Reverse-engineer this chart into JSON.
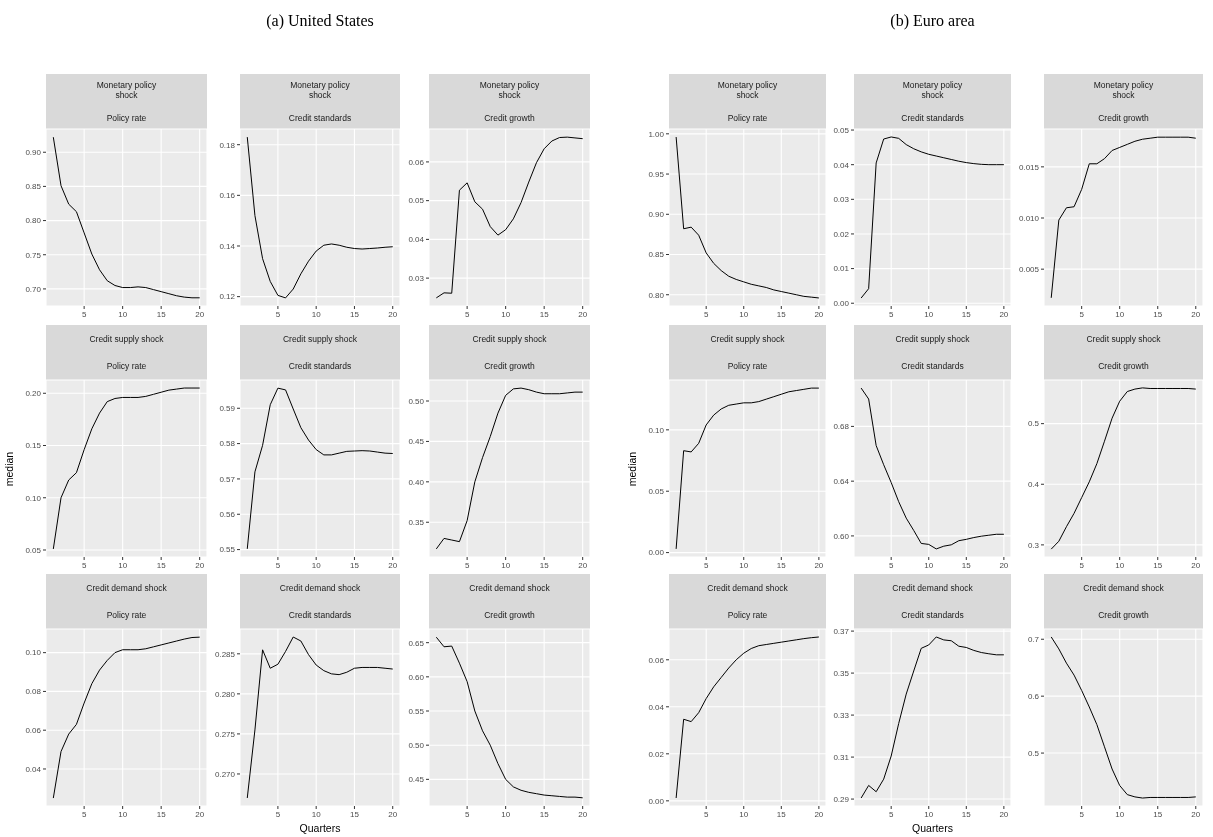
{
  "chart_data": [
    {
      "type": "line",
      "title": "Monetary policy\nshock",
      "subtitle": "Policy rate",
      "color": "#000000",
      "grid": true,
      "x": [
        1,
        2,
        3,
        4,
        5,
        6,
        7,
        8,
        9,
        10,
        11,
        12,
        13,
        14,
        15,
        16,
        17,
        18,
        19,
        20
      ],
      "xlim": [
        0.05,
        20.95
      ],
      "xticks": [
        5,
        10,
        15,
        20
      ],
      "ylim": [
        0.675,
        0.934
      ],
      "yticks": [
        {
          "value": 0.7,
          "label": "0.70"
        },
        0.75,
        {
          "value": 0.8,
          "label": "0.80"
        },
        0.85,
        {
          "value": 0.9,
          "label": "0.90"
        }
      ],
      "values": [
        0.922,
        0.851,
        0.824,
        0.813,
        0.782,
        0.751,
        0.728,
        0.712,
        0.705,
        0.702,
        0.702,
        0.703,
        0.702,
        0.699,
        0.696,
        0.693,
        0.69,
        0.688,
        0.687,
        0.687
      ]
    },
    {
      "type": "line",
      "title": "Monetary policy\nshock",
      "subtitle": "Credit standards",
      "annotations": [
        "(a) United States"
      ],
      "color": "#000000",
      "grid": true,
      "x": [
        1,
        2,
        3,
        4,
        5,
        6,
        7,
        8,
        9,
        10,
        11,
        12,
        13,
        14,
        15,
        16,
        17,
        18,
        19,
        20
      ],
      "xlim": [
        0.05,
        20.95
      ],
      "xticks": [
        5,
        10,
        15,
        20
      ],
      "ylim": [
        0.1163,
        0.1862
      ],
      "yticks": [
        0.12,
        0.14,
        0.16,
        0.18
      ],
      "values": [
        0.183,
        0.152,
        0.135,
        0.126,
        0.1205,
        0.1195,
        0.123,
        0.129,
        0.134,
        0.138,
        0.1403,
        0.1408,
        0.1403,
        0.1395,
        0.139,
        0.1388,
        0.139,
        0.1392,
        0.1395,
        0.1397
      ]
    },
    {
      "type": "line",
      "title": "Monetary policy\nshock",
      "subtitle": "Credit growth",
      "color": "#000000",
      "grid": true,
      "x": [
        1,
        2,
        3,
        4,
        5,
        6,
        7,
        8,
        9,
        10,
        11,
        12,
        13,
        14,
        15,
        16,
        17,
        18,
        19,
        20
      ],
      "xlim": [
        0.05,
        20.95
      ],
      "xticks": [
        5,
        10,
        15,
        20
      ],
      "ylim": [
        0.0228,
        0.0685
      ],
      "yticks": [
        0.03,
        0.04,
        0.05,
        0.06
      ],
      "values": [
        0.0249,
        0.0262,
        0.0261,
        0.0527,
        0.0546,
        0.0497,
        0.0478,
        0.0433,
        0.0411,
        0.0425,
        0.0453,
        0.0495,
        0.0548,
        0.0598,
        0.0634,
        0.0654,
        0.0663,
        0.0664,
        0.0662,
        0.066
      ]
    },
    {
      "type": "line",
      "title": "Credit supply shock",
      "subtitle": "Policy rate",
      "ylabel": "median",
      "color": "#000000",
      "grid": true,
      "x": [
        1,
        2,
        3,
        4,
        5,
        6,
        7,
        8,
        9,
        10,
        11,
        12,
        13,
        14,
        15,
        16,
        17,
        18,
        19,
        20
      ],
      "xlim": [
        0.05,
        20.95
      ],
      "xticks": [
        5,
        10,
        15,
        20
      ],
      "ylim": [
        0.0433,
        0.2127
      ],
      "yticks": [
        0.05,
        {
          "value": 0.1,
          "label": "0.10"
        },
        0.15,
        {
          "value": 0.2,
          "label": "0.20"
        }
      ],
      "values": [
        0.051,
        0.1,
        0.117,
        0.124,
        0.146,
        0.166,
        0.181,
        0.192,
        0.195,
        0.196,
        0.196,
        0.196,
        0.197,
        0.199,
        0.201,
        0.203,
        0.204,
        0.205,
        0.205,
        0.205
      ]
    },
    {
      "type": "line",
      "title": "Credit supply shock",
      "subtitle": "Credit standards",
      "color": "#000000",
      "grid": true,
      "x": [
        1,
        2,
        3,
        4,
        5,
        6,
        7,
        8,
        9,
        10,
        11,
        12,
        13,
        14,
        15,
        16,
        17,
        18,
        19,
        20
      ],
      "xlim": [
        0.05,
        20.95
      ],
      "xticks": [
        5,
        10,
        15,
        20
      ],
      "ylim": [
        0.5479,
        0.598
      ],
      "yticks": [
        0.55,
        0.56,
        0.57,
        0.58,
        0.59
      ],
      "values": [
        0.5502,
        0.572,
        0.5795,
        0.591,
        0.5957,
        0.5952,
        0.5898,
        0.5845,
        0.581,
        0.5783,
        0.5768,
        0.5768,
        0.5773,
        0.5778,
        0.5779,
        0.578,
        0.5779,
        0.5776,
        0.5773,
        0.5772
      ]
    },
    {
      "type": "line",
      "title": "Credit supply shock",
      "subtitle": "Credit growth",
      "color": "#000000",
      "grid": true,
      "x": [
        1,
        2,
        3,
        4,
        5,
        6,
        7,
        8,
        9,
        10,
        11,
        12,
        13,
        14,
        15,
        16,
        17,
        18,
        19,
        20
      ],
      "xlim": [
        0.05,
        20.95
      ],
      "xticks": [
        5,
        10,
        15,
        20
      ],
      "ylim": [
        0.307,
        0.526
      ],
      "yticks": [
        0.35,
        {
          "value": 0.4,
          "label": "0.40"
        },
        0.45,
        {
          "value": 0.5,
          "label": "0.50"
        }
      ],
      "values": [
        0.317,
        0.33,
        0.328,
        0.326,
        0.352,
        0.4,
        0.43,
        0.456,
        0.485,
        0.507,
        0.515,
        0.516,
        0.514,
        0.511,
        0.509,
        0.509,
        0.509,
        0.51,
        0.511,
        0.511
      ]
    },
    {
      "type": "line",
      "title": "Credit demand shock",
      "subtitle": "Policy rate",
      "color": "#000000",
      "grid": true,
      "x": [
        1,
        2,
        3,
        4,
        5,
        6,
        7,
        8,
        9,
        10,
        11,
        12,
        13,
        14,
        15,
        16,
        17,
        18,
        19,
        20
      ],
      "xlim": [
        0.05,
        20.95
      ],
      "xticks": [
        5,
        10,
        15,
        20
      ],
      "ylim": [
        0.0209,
        0.1122
      ],
      "yticks": [
        0.04,
        0.06,
        0.08,
        {
          "value": 0.1,
          "label": "0.10"
        }
      ],
      "values": [
        0.025,
        0.049,
        0.058,
        0.063,
        0.074,
        0.084,
        0.091,
        0.096,
        0.1,
        0.1015,
        0.1015,
        0.1015,
        0.102,
        0.103,
        0.104,
        0.105,
        0.106,
        0.107,
        0.1078,
        0.108
      ]
    },
    {
      "type": "line",
      "title": "Credit demand shock",
      "subtitle": "Credit standards",
      "xlabel": "Quarters",
      "color": "#000000",
      "grid": true,
      "x": [
        1,
        2,
        3,
        4,
        5,
        6,
        7,
        8,
        9,
        10,
        11,
        12,
        13,
        14,
        15,
        16,
        17,
        18,
        19,
        20
      ],
      "xlim": [
        0.05,
        20.95
      ],
      "xticks": [
        5,
        10,
        15,
        20
      ],
      "ylim": [
        0.266,
        0.2881
      ],
      "yticks": [
        {
          "value": 0.27,
          "label": "0.270"
        },
        0.275,
        {
          "value": 0.28,
          "label": "0.280"
        },
        0.285
      ],
      "values": [
        0.267,
        0.2755,
        0.2855,
        0.2832,
        0.2837,
        0.2853,
        0.2871,
        0.2866,
        0.2849,
        0.2836,
        0.2829,
        0.2825,
        0.2824,
        0.2827,
        0.2832,
        0.2833,
        0.2833,
        0.2833,
        0.2832,
        0.2831
      ]
    },
    {
      "type": "line",
      "title": "Credit demand shock",
      "subtitle": "Credit growth",
      "color": "#000000",
      "grid": true,
      "x": [
        1,
        2,
        3,
        4,
        5,
        6,
        7,
        8,
        9,
        10,
        11,
        12,
        13,
        14,
        15,
        16,
        17,
        18,
        19,
        20
      ],
      "xlim": [
        0.05,
        20.95
      ],
      "xticks": [
        5,
        10,
        15,
        20
      ],
      "ylim": [
        0.411,
        0.67
      ],
      "yticks": [
        0.45,
        {
          "value": 0.5,
          "label": "0.50"
        },
        0.55,
        {
          "value": 0.6,
          "label": "0.60"
        },
        0.65
      ],
      "values": [
        0.658,
        0.644,
        0.645,
        0.62,
        0.593,
        0.55,
        0.521,
        0.5,
        0.473,
        0.45,
        0.439,
        0.434,
        0.431,
        0.429,
        0.427,
        0.426,
        0.425,
        0.424,
        0.424,
        0.423
      ]
    },
    {
      "type": "line",
      "title": "Monetary policy\nshock",
      "subtitle": "Policy rate",
      "color": "#000000",
      "grid": true,
      "x": [
        1,
        2,
        3,
        4,
        5,
        6,
        7,
        8,
        9,
        10,
        11,
        12,
        13,
        14,
        15,
        16,
        17,
        18,
        19,
        20
      ],
      "xlim": [
        0.05,
        20.95
      ],
      "xticks": [
        5,
        10,
        15,
        20
      ],
      "ylim": [
        0.786,
        1.006
      ],
      "yticks": [
        {
          "value": 0.8,
          "label": "0.80"
        },
        0.85,
        {
          "value": 0.9,
          "label": "0.90"
        },
        0.95,
        {
          "value": 1,
          "label": "1.00"
        }
      ],
      "values": [
        0.996,
        0.882,
        0.884,
        0.874,
        0.852,
        0.839,
        0.83,
        0.823,
        0.819,
        0.816,
        0.813,
        0.811,
        0.809,
        0.806,
        0.804,
        0.802,
        0.8,
        0.798,
        0.797,
        0.796
      ]
    },
    {
      "type": "line",
      "title": "Monetary policy\nshock",
      "subtitle": "Credit standards",
      "annotations": [
        "(b) Euro area"
      ],
      "color": "#000000",
      "grid": true,
      "x": [
        1,
        2,
        3,
        4,
        5,
        6,
        7,
        8,
        9,
        10,
        11,
        12,
        13,
        14,
        15,
        16,
        17,
        18,
        19,
        20
      ],
      "xlim": [
        0.05,
        20.95
      ],
      "xticks": [
        5,
        10,
        15,
        20
      ],
      "ylim": [
        -0.0008,
        0.0503
      ],
      "yticks": [
        {
          "value": 0,
          "label": "0.00"
        },
        0.01,
        0.02,
        0.03,
        0.04,
        0.05
      ],
      "values": [
        0.0015,
        0.0042,
        0.0405,
        0.0474,
        0.048,
        0.0476,
        0.0458,
        0.0446,
        0.0437,
        0.043,
        0.0425,
        0.042,
        0.0415,
        0.041,
        0.0406,
        0.0403,
        0.0401,
        0.04,
        0.04,
        0.04
      ]
    },
    {
      "type": "line",
      "title": "Monetary policy\nshock",
      "subtitle": "Credit growth",
      "color": "#000000",
      "grid": true,
      "x": [
        1,
        2,
        3,
        4,
        5,
        6,
        7,
        8,
        9,
        10,
        11,
        12,
        13,
        14,
        15,
        16,
        17,
        18,
        19,
        20
      ],
      "xlim": [
        0.05,
        20.95
      ],
      "xticks": [
        5,
        10,
        15,
        20
      ],
      "ylim": [
        0.0014,
        0.0187
      ],
      "yticks": [
        0.005,
        {
          "value": 0.01,
          "label": "0.010"
        },
        0.015
      ],
      "values": [
        0.0022,
        0.0098,
        0.011,
        0.0111,
        0.0128,
        0.0153,
        0.0153,
        0.0158,
        0.0166,
        0.0169,
        0.0172,
        0.0175,
        0.0177,
        0.0178,
        0.0179,
        0.0179,
        0.0179,
        0.0179,
        0.0179,
        0.0178
      ]
    },
    {
      "type": "line",
      "title": "Credit supply shock",
      "subtitle": "Policy rate",
      "ylabel": "median",
      "color": "#000000",
      "grid": true,
      "x": [
        1,
        2,
        3,
        4,
        5,
        6,
        7,
        8,
        9,
        10,
        11,
        12,
        13,
        14,
        15,
        16,
        17,
        18,
        19,
        20
      ],
      "xlim": [
        0.05,
        20.95
      ],
      "xticks": [
        5,
        10,
        15,
        20
      ],
      "ylim": [
        -0.0036,
        0.1406
      ],
      "yticks": [
        {
          "value": 0,
          "label": "0.00"
        },
        0.05,
        {
          "value": 0.1,
          "label": "0.10"
        }
      ],
      "values": [
        0.003,
        0.083,
        0.082,
        0.089,
        0.104,
        0.112,
        0.117,
        0.12,
        0.121,
        0.122,
        0.122,
        0.123,
        0.125,
        0.127,
        0.129,
        0.131,
        0.132,
        0.133,
        0.134,
        0.134
      ]
    },
    {
      "type": "line",
      "title": "Credit supply shock",
      "subtitle": "Credit standards",
      "color": "#000000",
      "grid": true,
      "x": [
        1,
        2,
        3,
        4,
        5,
        6,
        7,
        8,
        9,
        10,
        11,
        12,
        13,
        14,
        15,
        16,
        17,
        18,
        19,
        20
      ],
      "xlim": [
        0.05,
        20.95
      ],
      "xticks": [
        5,
        10,
        15,
        20
      ],
      "ylim": [
        0.5846,
        0.7139
      ],
      "yticks": [
        {
          "value": 0.6,
          "label": "0.60"
        },
        0.64,
        0.68
      ],
      "values": [
        0.708,
        0.7,
        0.666,
        0.652,
        0.639,
        0.625,
        0.613,
        0.604,
        0.5945,
        0.5938,
        0.5905,
        0.5925,
        0.5935,
        0.5965,
        0.5975,
        0.5988,
        0.5998,
        0.6005,
        0.6012,
        0.6012
      ]
    },
    {
      "type": "line",
      "title": "Credit supply shock",
      "subtitle": "Credit growth",
      "color": "#000000",
      "grid": true,
      "x": [
        1,
        2,
        3,
        4,
        5,
        6,
        7,
        8,
        9,
        10,
        11,
        12,
        13,
        14,
        15,
        16,
        17,
        18,
        19,
        20
      ],
      "xlim": [
        0.05,
        20.95
      ],
      "xticks": [
        5,
        10,
        15,
        20
      ],
      "ylim": [
        0.28,
        0.572
      ],
      "yticks": [
        0.3,
        0.4,
        0.5
      ],
      "values": [
        0.293,
        0.306,
        0.33,
        0.352,
        0.378,
        0.404,
        0.434,
        0.471,
        0.509,
        0.537,
        0.553,
        0.557,
        0.559,
        0.558,
        0.558,
        0.558,
        0.558,
        0.558,
        0.558,
        0.557
      ]
    },
    {
      "type": "line",
      "title": "Credit demand shock",
      "subtitle": "Policy rate",
      "color": "#000000",
      "grid": true,
      "x": [
        1,
        2,
        3,
        4,
        5,
        6,
        7,
        8,
        9,
        10,
        11,
        12,
        13,
        14,
        15,
        16,
        17,
        18,
        19,
        20
      ],
      "xlim": [
        0.05,
        20.95
      ],
      "xticks": [
        5,
        10,
        15,
        20
      ],
      "ylim": [
        -0.0022,
        0.0731
      ],
      "yticks": [
        {
          "value": 0,
          "label": "0.00"
        },
        0.02,
        0.04,
        0.06
      ],
      "values": [
        0.0012,
        0.0347,
        0.0337,
        0.0375,
        0.0435,
        0.0485,
        0.0525,
        0.0565,
        0.06,
        0.0628,
        0.0648,
        0.066,
        0.0665,
        0.067,
        0.0675,
        0.068,
        0.0685,
        0.069,
        0.0694,
        0.0697
      ]
    },
    {
      "type": "line",
      "title": "Credit demand shock",
      "subtitle": "Credit standards",
      "xlabel": "Quarters",
      "color": "#000000",
      "grid": true,
      "x": [
        1,
        2,
        3,
        4,
        5,
        6,
        7,
        8,
        9,
        10,
        11,
        12,
        13,
        14,
        15,
        16,
        17,
        18,
        19,
        20
      ],
      "xlim": [
        0.05,
        20.95
      ],
      "xticks": [
        5,
        10,
        15,
        20
      ],
      "ylim": [
        0.2867,
        0.371
      ],
      "yticks": [
        0.29,
        0.31,
        0.33,
        0.35,
        0.37
      ],
      "values": [
        0.2905,
        0.2965,
        0.2935,
        0.2995,
        0.3105,
        0.326,
        0.34,
        0.351,
        0.3618,
        0.3634,
        0.3672,
        0.3658,
        0.3654,
        0.3628,
        0.3622,
        0.3608,
        0.3598,
        0.3592,
        0.3587,
        0.3587
      ]
    },
    {
      "type": "line",
      "title": "Credit demand shock",
      "subtitle": "Credit growth",
      "color": "#000000",
      "grid": true,
      "x": [
        1,
        2,
        3,
        4,
        5,
        6,
        7,
        8,
        9,
        10,
        11,
        12,
        13,
        14,
        15,
        16,
        17,
        18,
        19,
        20
      ],
      "xlim": [
        0.05,
        20.95
      ],
      "xticks": [
        5,
        10,
        15,
        20
      ],
      "ylim": [
        0.407,
        0.718
      ],
      "yticks": [
        0.5,
        0.6,
        0.7
      ],
      "values": [
        0.704,
        0.683,
        0.658,
        0.637,
        0.61,
        0.581,
        0.55,
        0.511,
        0.472,
        0.443,
        0.427,
        0.423,
        0.421,
        0.422,
        0.422,
        0.422,
        0.422,
        0.422,
        0.422,
        0.423
      ]
    }
  ]
}
